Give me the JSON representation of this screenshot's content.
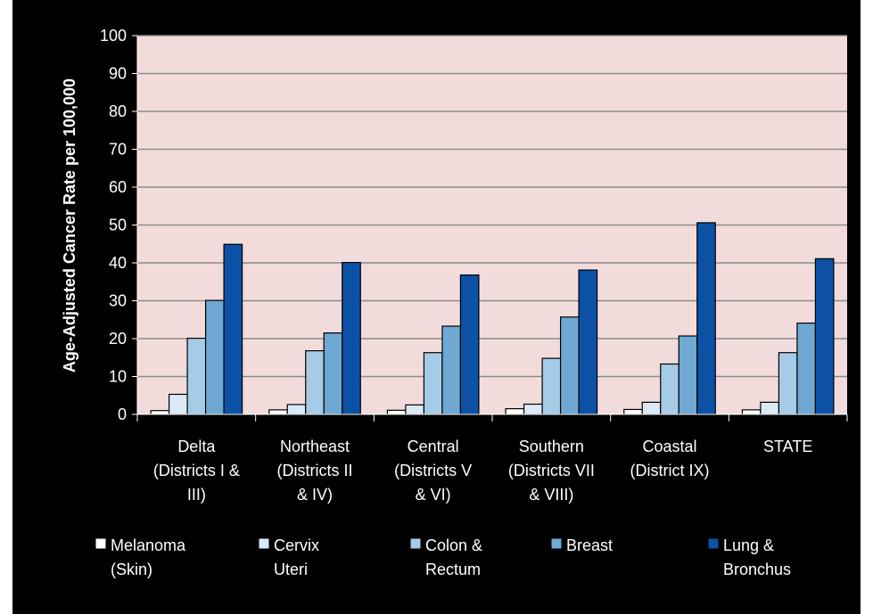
{
  "chart_data": {
    "type": "bar",
    "title": "",
    "ylabel": "Age-Adjusted Cancer Rate per 100,000",
    "xlabel": "",
    "ylim": [
      0,
      100
    ],
    "yticks": [
      0,
      10,
      20,
      30,
      40,
      50,
      60,
      70,
      80,
      90,
      100
    ],
    "grid": true,
    "legend_position": "bottom",
    "categories": [
      [
        "Delta",
        "(Districts I &",
        "III)"
      ],
      [
        "Northeast",
        "(Districts II",
        "& IV)"
      ],
      [
        "Central",
        "(Districts V",
        "& VI)"
      ],
      [
        "Southern",
        "(Districts VII",
        "& VIII)"
      ],
      [
        "Coastal",
        "(District IX)"
      ],
      [
        "STATE"
      ]
    ],
    "series": [
      {
        "name": [
          "Melanoma",
          "(Skin)"
        ],
        "color": "#ffffff",
        "values": [
          1.0,
          1.2,
          1.1,
          1.5,
          1.3,
          1.2
        ]
      },
      {
        "name": [
          "Cervix",
          "Uteri"
        ],
        "color": "#dbe9f6",
        "values": [
          5.3,
          2.6,
          2.5,
          2.7,
          3.2,
          3.2
        ]
      },
      {
        "name": [
          "Colon &",
          "Rectum"
        ],
        "color": "#a6cbe6",
        "values": [
          20.1,
          16.8,
          16.3,
          14.8,
          13.3,
          16.3
        ]
      },
      {
        "name": [
          "Breast"
        ],
        "color": "#6ea8d3",
        "values": [
          30.1,
          21.5,
          23.3,
          25.7,
          20.7,
          24.1
        ]
      },
      {
        "name": [
          "Lung &",
          "Bronchus"
        ],
        "color": "#0c51a5",
        "values": [
          44.9,
          40.1,
          36.8,
          38.1,
          50.6,
          41.1
        ]
      }
    ],
    "colors": {
      "plot_background": "#f2dcdb",
      "page_background": "#000000",
      "gridline": "#8c8c8c",
      "bar_outline": "#000000"
    }
  }
}
